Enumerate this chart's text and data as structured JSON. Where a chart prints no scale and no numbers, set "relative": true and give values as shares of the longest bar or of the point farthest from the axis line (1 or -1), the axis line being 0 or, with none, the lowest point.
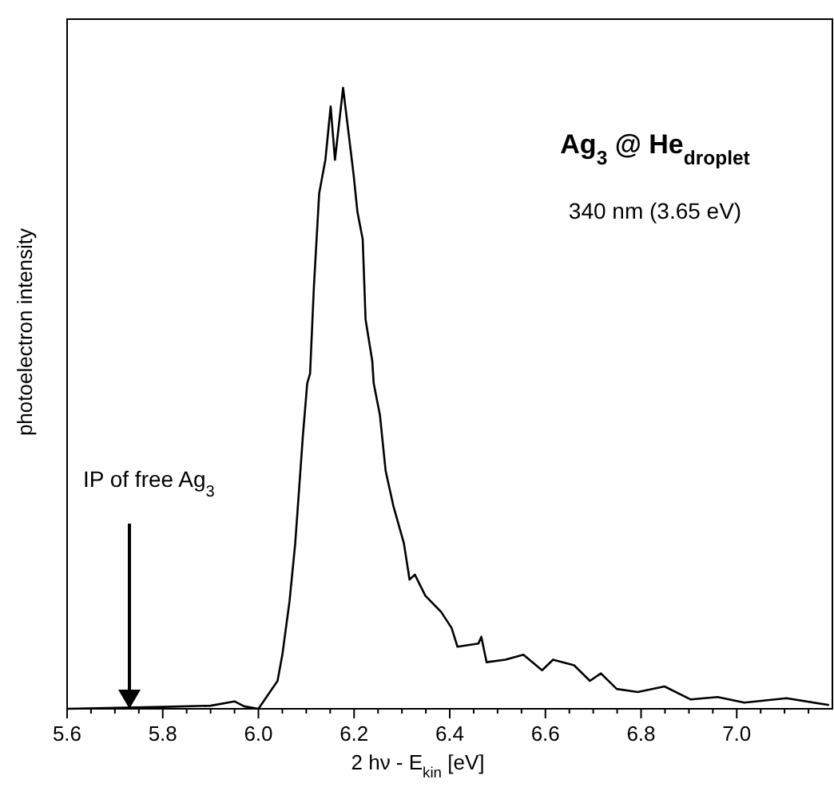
{
  "chart_data": {
    "type": "line",
    "title": "Ag$_{3}$ @ He$_{droplet}$",
    "subtitle": "340 nm (3.65 eV)",
    "xlabel": "2 hν - E$_{kin}$ [eV]",
    "ylabel": "photoelectron intensity",
    "relative": true,
    "xlim": [
      5.6,
      7.2
    ],
    "xticks": [
      5.6,
      {
        "value": 5.65,
        "label": null
      },
      5.8,
      {
        "value": 5.75,
        "label": null
      },
      {
        "value": 5.7,
        "label": null
      },
      {
        "value": 5.85,
        "label": null
      },
      {
        "value": 5.9,
        "label": null
      },
      {
        "value": 5.95,
        "label": null
      },
      {
        "value": 6.0,
        "label": "6.0"
      },
      {
        "value": 6.05,
        "label": null
      },
      {
        "value": 6.1,
        "label": null
      },
      {
        "value": 6.15,
        "label": null
      },
      6.2,
      {
        "value": 6.25,
        "label": null
      },
      {
        "value": 6.3,
        "label": null
      },
      {
        "value": 6.35,
        "label": null
      },
      6.4,
      {
        "value": 6.45,
        "label": null
      },
      {
        "value": 6.5,
        "label": null
      },
      {
        "value": 6.55,
        "label": null
      },
      6.6,
      {
        "value": 6.65,
        "label": null
      },
      {
        "value": 6.7,
        "label": null
      },
      {
        "value": 6.75,
        "label": null
      },
      6.8,
      {
        "value": 6.85,
        "label": null
      },
      {
        "value": 6.9,
        "label": null
      },
      {
        "value": 6.95,
        "label": null
      },
      {
        "value": 7.0,
        "label": "7.0"
      },
      {
        "value": 7.05,
        "label": null
      },
      {
        "value": 7.1,
        "label": null
      },
      {
        "value": 7.15,
        "label": null
      }
    ],
    "x": [
      5.6,
      5.8,
      5.9,
      5.95,
      5.97,
      6.0,
      6.04,
      6.05,
      6.065,
      6.077,
      6.093,
      6.102,
      6.108,
      6.116,
      6.127,
      6.14,
      6.151,
      6.16,
      6.177,
      6.188,
      6.199,
      6.207,
      6.218,
      6.224,
      6.238,
      6.241,
      6.254,
      6.266,
      6.282,
      6.304,
      6.316,
      6.327,
      6.349,
      6.382,
      6.404,
      6.416,
      6.46,
      6.466,
      6.477,
      6.516,
      6.554,
      6.593,
      6.616,
      6.66,
      6.693,
      6.716,
      6.749,
      6.793,
      6.849,
      6.904,
      6.96,
      7.016,
      7.104,
      7.193
    ],
    "series": [
      {
        "color": "#000000",
        "values": [
          0,
          0.003,
          0.005,
          0.012,
          0.004,
          0,
          0.045,
          0.087,
          0.173,
          0.267,
          0.44,
          0.524,
          0.54,
          0.68,
          0.83,
          0.884,
          0.97,
          0.884,
          1,
          0.93,
          0.86,
          0.8,
          0.756,
          0.627,
          0.56,
          0.524,
          0.473,
          0.383,
          0.327,
          0.267,
          0.208,
          0.216,
          0.182,
          0.156,
          0.13,
          0.1,
          0.105,
          0.116,
          0.075,
          0.079,
          0.087,
          0.062,
          0.079,
          0.07,
          0.045,
          0.057,
          0.032,
          0.027,
          0.036,
          0.015,
          0.019,
          0.01,
          0.017,
          0.006
        ]
      }
    ],
    "annotations": [
      "IP of free Ag$_{3}$"
    ],
    "grid": false,
    "marker": "none",
    "line_style": "solid"
  }
}
